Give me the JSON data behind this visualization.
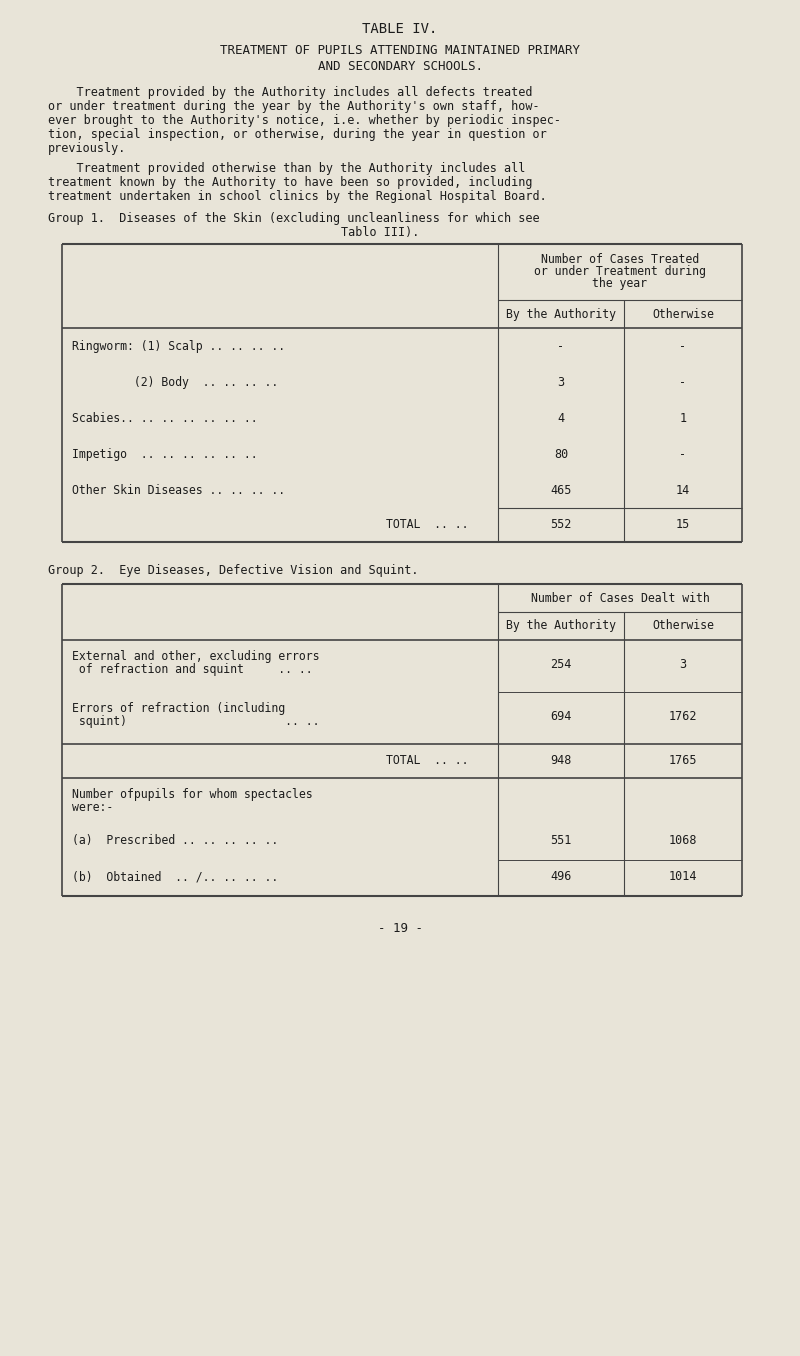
{
  "bg_color": "#e8e4d8",
  "title1": "TABLE IV.",
  "title2": "TREATMENT OF PUPILS ATTENDING MAINTAINED PRIMARY",
  "title3": "AND SECONDARY SCHOOLS.",
  "para1_lines": [
    "    Treatment provided by the Authority includes all defects treated",
    "or under treatment during the year by the Authority's own staff, how-",
    "ever brought to the Authority's notice, i.e. whether by periodic inspec-",
    "tion, special inspection, or otherwise, during the year in question or",
    "previously."
  ],
  "para2_lines": [
    "    Treatment provided otherwise than by the Authority includes all",
    "treatment known by the Authority to have been so provided, including",
    "treatment undertaken in school clinics by the Regional Hospital Board."
  ],
  "group1_heading_line1": "Group 1.  Diseases of the Skin (excluding uncleanliness for which see",
  "group1_heading_line2": "                        Tablo III).",
  "g1_header1": "Number of Cases Treated",
  "g1_header1b": "or under Treatment during",
  "g1_header1c": "the year",
  "g1_header2a": "By the Authority",
  "g1_header2b": "Otherwise",
  "group1_rows": [
    [
      "Ringworm: (1) Scalp .. .. .. ..",
      "-",
      "-"
    ],
    [
      "         (2) Body  .. .. .. ..",
      "3",
      "-"
    ],
    [
      "Scabies.. .. .. .. .. .. ..",
      "4",
      "1"
    ],
    [
      "Impetigo  .. .. .. .. .. ..",
      "80",
      "-"
    ],
    [
      "Other Skin Diseases .. .. .. ..",
      "465",
      "14"
    ]
  ],
  "group1_total_label": "TOTAL  .. ..",
  "group1_total_auth": "552",
  "group1_total_other": "15",
  "group2_heading": "Group 2.  Eye Diseases, Defective Vision and Squint.",
  "g2_header1": "Number of Cases Dealt with",
  "g2_header2a": "By the Authority",
  "g2_header2b": "Otherwise",
  "g2_row1_line1": "External and other, excluding errors",
  "g2_row1_line2": " of refraction and squint     .. ..",
  "g2_row1_auth": "254",
  "g2_row1_other": "3",
  "g2_row2_line1": "Errors of refraction (including",
  "g2_row2_line2": " squint)                       .. ..",
  "g2_row2_auth": "694",
  "g2_row2_other": "1762",
  "group2_total_label": "TOTAL  .. ..",
  "group2_total_auth": "948",
  "group2_total_other": "1765",
  "spec_header1": "Number ofpupils for whom spectacles",
  "spec_header2": "were:-",
  "spec_row1_label": "(a)  Prescribed .. .. .. .. ..",
  "spec_row1_auth": "551",
  "spec_row1_other": "1068",
  "spec_row2_label": "(b)  Obtained  .. /.. .. .. ..",
  "spec_row2_auth": "496",
  "spec_row2_other": "1014",
  "page_number": "- 19 -",
  "text_color": "#1c1c1c",
  "line_color": "#444444"
}
